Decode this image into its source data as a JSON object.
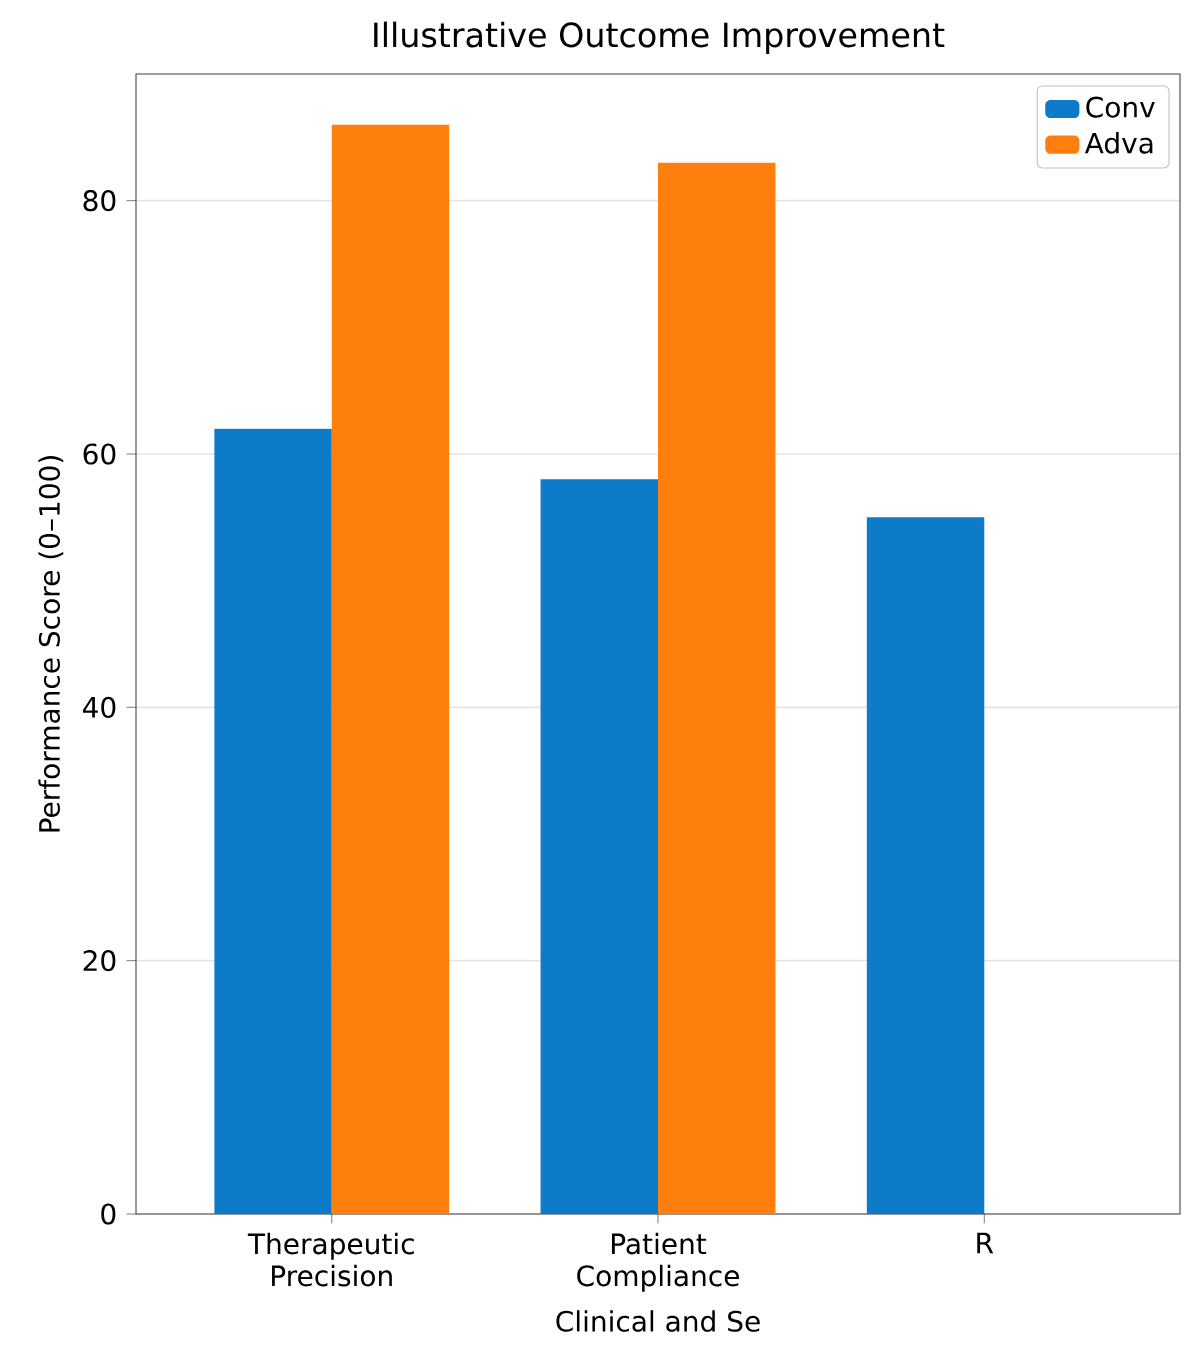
{
  "chart_data": {
    "type": "bar",
    "title": "Illustrative Outcome Improvement",
    "xlabel": "Clinical and Se",
    "ylabel": "Performance Score (0–100)",
    "categories": [
      "Therapeutic\nPrecision",
      "Patient\nCompliance",
      "R"
    ],
    "series": [
      {
        "name": "Conv",
        "color": "#0d7bca",
        "values": [
          62,
          58,
          55
        ]
      },
      {
        "name": "Adva",
        "color": "#ff7f0e",
        "values": [
          86,
          83,
          null
        ]
      }
    ],
    "ylim": [
      0,
      90
    ],
    "yticks": [
      0,
      20,
      40,
      60,
      80
    ],
    "grid": "y",
    "legend": "top right"
  }
}
